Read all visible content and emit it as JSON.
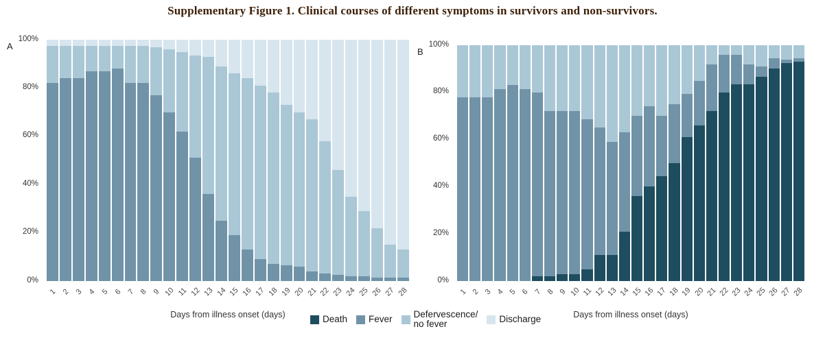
{
  "title": "Supplementary Figure 1. Clinical courses of different symptoms in survivors and non-survivors.",
  "colors": {
    "title_text": "#3d2008",
    "death": "#1e4d5f",
    "fever": "#7093a8",
    "defervescence": "#aac7d6",
    "discharge": "#d7e5ee",
    "axis_text": "#404040"
  },
  "legend": {
    "position": "bottom-center",
    "items": [
      {
        "label": "Death",
        "color": "#1e4d5f"
      },
      {
        "label": "Fever",
        "color": "#7093a8"
      },
      {
        "label": "Defervescence/\nno fever",
        "color": "#aac7d6"
      },
      {
        "label": "Discharge",
        "color": "#d7e5ee"
      }
    ]
  },
  "chart_data": [
    {
      "panel_label": "A",
      "type": "bar",
      "stacked": true,
      "title": "",
      "xlabel": "Days from illness onset (days)",
      "ylabel": "",
      "ylim": [
        0,
        100
      ],
      "yticks": [
        0,
        20,
        40,
        60,
        80,
        100
      ],
      "ytick_suffix": "%",
      "grid": false,
      "categories": [
        "1",
        "2",
        "3",
        "4",
        "5",
        "6",
        "7",
        "8",
        "9",
        "10",
        "11",
        "12",
        "13",
        "14",
        "15",
        "16",
        "17",
        "18",
        "19",
        "20",
        "21",
        "22",
        "23",
        "24",
        "25",
        "26",
        "27",
        "28"
      ],
      "series": [
        {
          "name": "Fever",
          "color": "#7093a8",
          "values": [
            82,
            84,
            84,
            87,
            87,
            88,
            82,
            82,
            77,
            70,
            62,
            51,
            36,
            25,
            19,
            13,
            9,
            7,
            6.5,
            6,
            4,
            3,
            2.5,
            2,
            2,
            1.5,
            1.5,
            1.5
          ]
        },
        {
          "name": "Defervescence/no fever",
          "color": "#aac7d6",
          "values": [
            15.5,
            13.5,
            13.5,
            10.5,
            10.5,
            9.5,
            15.5,
            15.5,
            20,
            26,
            33,
            42.5,
            57,
            64,
            67,
            71,
            72,
            71,
            66.5,
            64,
            63,
            55,
            43.5,
            33,
            27,
            20.5,
            13.5,
            11.5
          ]
        },
        {
          "name": "Discharge",
          "color": "#d7e5ee",
          "values": [
            2.5,
            2.5,
            2.5,
            2.5,
            2.5,
            2.5,
            2.5,
            2.5,
            3,
            4,
            5,
            6.5,
            7,
            11,
            14,
            16,
            19,
            22,
            27,
            30,
            33,
            42,
            54,
            65,
            71,
            78,
            85,
            87
          ]
        }
      ]
    },
    {
      "panel_label": "B",
      "type": "bar",
      "stacked": true,
      "title": "",
      "xlabel": "Days from illness onset (days)",
      "ylabel": "",
      "ylim": [
        0,
        100
      ],
      "yticks": [
        0,
        20,
        40,
        60,
        80,
        100
      ],
      "ytick_suffix": "%",
      "grid": false,
      "categories": [
        "1",
        "2",
        "3",
        "4",
        "5",
        "6",
        "7",
        "8",
        "9",
        "10",
        "11",
        "12",
        "13",
        "14",
        "15",
        "16",
        "17",
        "18",
        "19",
        "20",
        "21",
        "22",
        "23",
        "24",
        "25",
        "26",
        "27",
        "28"
      ],
      "series": [
        {
          "name": "Death",
          "color": "#1e4d5f",
          "values": [
            0,
            0,
            0,
            0,
            0,
            0,
            2,
            2,
            3,
            3,
            5,
            11,
            11,
            21,
            36,
            40,
            44.5,
            50,
            61,
            66,
            72,
            80,
            83.5,
            83.5,
            86.5,
            90,
            92.5,
            93
          ]
        },
        {
          "name": "Fever",
          "color": "#7093a8",
          "values": [
            78,
            78,
            78,
            81.5,
            83,
            81.5,
            78,
            70,
            69,
            69,
            63.5,
            54,
            48,
            42,
            34,
            34,
            25.5,
            25,
            18.5,
            19,
            20,
            16,
            12.5,
            8.5,
            4.5,
            4.5,
            1.5,
            1.5
          ]
        },
        {
          "name": "Defervescence/no fever",
          "color": "#aac7d6",
          "values": [
            22,
            22,
            22,
            18.5,
            17,
            18.5,
            20,
            28,
            28,
            28,
            31.5,
            35,
            41,
            37,
            30,
            26,
            30,
            25,
            20.5,
            15,
            8,
            4,
            4,
            8,
            9,
            5.5,
            6,
            5.5
          ]
        }
      ]
    }
  ]
}
